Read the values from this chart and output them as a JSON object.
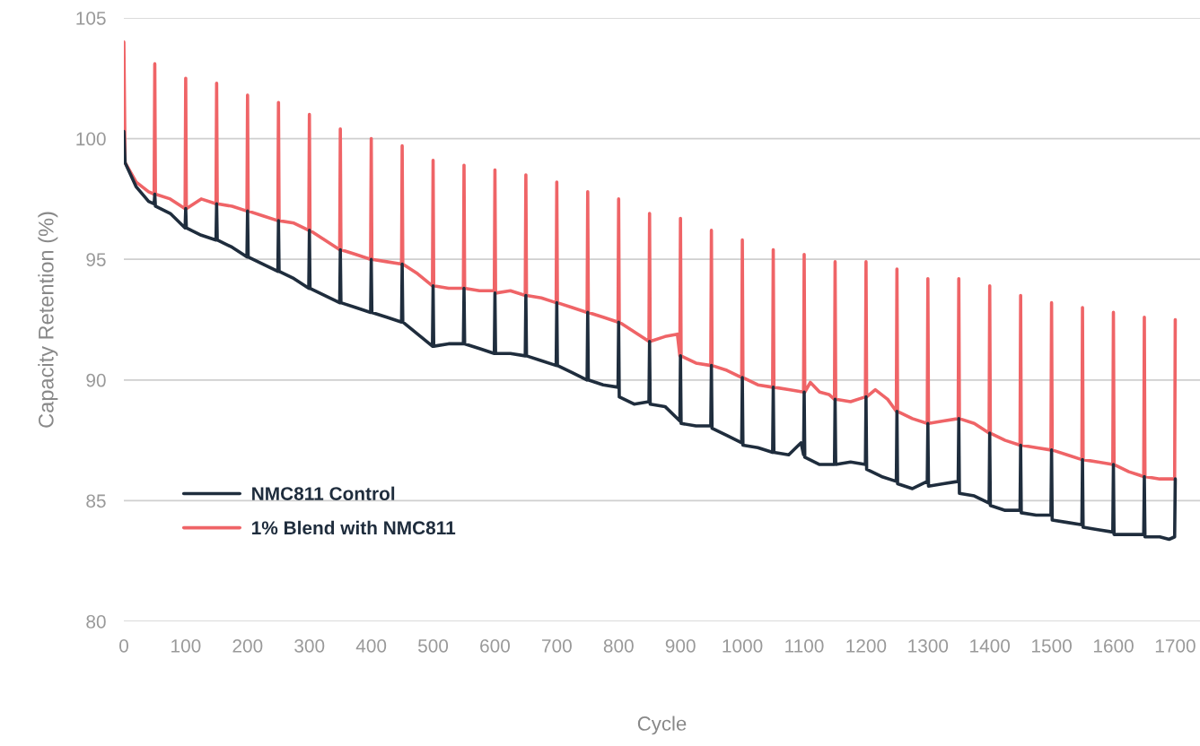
{
  "chart_data": {
    "type": "line",
    "xlabel": "Cycle",
    "ylabel": "Capacity Retention (%)",
    "xlim": [
      0,
      1740
    ],
    "xticks": [
      0,
      100,
      200,
      300,
      400,
      500,
      600,
      700,
      800,
      900,
      1000,
      1100,
      1200,
      1300,
      1400,
      1500,
      1600,
      1700
    ],
    "ylim": [
      80,
      105
    ],
    "yticks": [
      80,
      85,
      90,
      95,
      100,
      105
    ],
    "grid": "y",
    "legend": "bottom left",
    "marker": "none",
    "line_style": "solid",
    "series": [
      {
        "name": "NMC811 Control",
        "color": "#1f2d3d",
        "x": [
          0,
          2,
          20,
          40,
          49,
          50,
          51,
          75,
          99,
          100,
          101,
          125,
          149,
          150,
          151,
          175,
          199,
          200,
          201,
          225,
          249,
          250,
          251,
          275,
          299,
          300,
          301,
          325,
          349,
          350,
          351,
          375,
          399,
          400,
          401,
          425,
          449,
          450,
          451,
          475,
          499,
          500,
          501,
          525,
          549,
          550,
          551,
          575,
          599,
          600,
          601,
          625,
          649,
          650,
          651,
          675,
          699,
          700,
          701,
          725,
          749,
          750,
          751,
          775,
          799,
          800,
          801,
          825,
          849,
          850,
          851,
          875,
          899,
          900,
          901,
          925,
          949,
          950,
          951,
          975,
          999,
          1000,
          1001,
          1025,
          1049,
          1050,
          1051,
          1075,
          1095,
          1099,
          1100,
          1101,
          1125,
          1149,
          1150,
          1151,
          1175,
          1199,
          1200,
          1201,
          1225,
          1249,
          1250,
          1251,
          1275,
          1299,
          1300,
          1301,
          1325,
          1349,
          1350,
          1351,
          1375,
          1399,
          1400,
          1401,
          1425,
          1449,
          1450,
          1451,
          1475,
          1499,
          1500,
          1501,
          1525,
          1549,
          1550,
          1551,
          1575,
          1599,
          1600,
          1601,
          1625,
          1649,
          1650,
          1651,
          1675,
          1690,
          1699,
          1700
        ],
        "values": [
          100.3,
          99.0,
          98.0,
          97.4,
          97.3,
          97.7,
          97.2,
          96.9,
          96.3,
          97.1,
          96.3,
          96.0,
          95.8,
          97.3,
          95.8,
          95.5,
          95.1,
          97.0,
          95.1,
          94.8,
          94.5,
          96.6,
          94.5,
          94.2,
          93.8,
          96.2,
          93.8,
          93.5,
          93.2,
          95.4,
          93.2,
          93.0,
          92.8,
          95.0,
          92.8,
          92.6,
          92.4,
          94.8,
          92.4,
          91.9,
          91.4,
          93.9,
          91.4,
          91.5,
          91.5,
          93.8,
          91.5,
          91.3,
          91.1,
          93.6,
          91.1,
          91.1,
          91.0,
          93.5,
          91.0,
          90.8,
          90.6,
          93.2,
          90.6,
          90.3,
          90.0,
          92.8,
          90.0,
          89.8,
          89.7,
          92.4,
          89.3,
          89.0,
          89.1,
          91.6,
          89.0,
          88.9,
          88.3,
          91.0,
          88.2,
          88.1,
          88.1,
          90.6,
          88.0,
          87.7,
          87.4,
          90.1,
          87.3,
          87.2,
          87.0,
          89.7,
          87.0,
          86.9,
          87.4,
          86.9,
          89.5,
          86.8,
          86.5,
          86.5,
          89.2,
          86.5,
          86.6,
          86.5,
          89.3,
          86.3,
          86.0,
          85.8,
          88.7,
          85.7,
          85.5,
          85.8,
          88.2,
          85.6,
          85.7,
          85.8,
          88.4,
          85.3,
          85.2,
          84.9,
          87.8,
          84.8,
          84.6,
          84.6,
          87.3,
          84.5,
          84.4,
          84.4,
          87.1,
          84.2,
          84.1,
          84.0,
          86.7,
          83.9,
          83.8,
          83.7,
          86.5,
          83.6,
          83.6,
          83.6,
          86.0,
          83.5,
          83.5,
          83.4,
          83.5,
          85.9
        ]
      },
      {
        "name": "1% Blend with NMC811",
        "color": "#ef6467",
        "x": [
          0,
          2,
          20,
          40,
          49,
          50,
          51,
          75,
          99,
          100,
          101,
          125,
          149,
          150,
          151,
          175,
          199,
          200,
          201,
          225,
          249,
          250,
          251,
          275,
          299,
          300,
          301,
          325,
          349,
          350,
          351,
          375,
          399,
          400,
          401,
          425,
          449,
          450,
          451,
          475,
          499,
          500,
          501,
          525,
          549,
          550,
          551,
          575,
          599,
          600,
          601,
          625,
          649,
          650,
          651,
          675,
          699,
          700,
          701,
          725,
          749,
          750,
          751,
          775,
          799,
          800,
          801,
          825,
          849,
          850,
          851,
          875,
          895,
          899,
          900,
          901,
          925,
          949,
          950,
          951,
          975,
          999,
          1000,
          1001,
          1025,
          1049,
          1050,
          1051,
          1075,
          1099,
          1100,
          1101,
          1110,
          1125,
          1140,
          1149,
          1150,
          1151,
          1175,
          1199,
          1200,
          1201,
          1215,
          1235,
          1249,
          1250,
          1251,
          1275,
          1299,
          1300,
          1301,
          1325,
          1349,
          1350,
          1351,
          1375,
          1399,
          1400,
          1401,
          1425,
          1449,
          1450,
          1451,
          1475,
          1499,
          1500,
          1501,
          1525,
          1549,
          1550,
          1551,
          1575,
          1599,
          1600,
          1601,
          1625,
          1649,
          1650,
          1651,
          1675,
          1699,
          1700
        ],
        "values": [
          104.0,
          99.0,
          98.2,
          97.8,
          97.7,
          103.1,
          97.7,
          97.5,
          97.1,
          102.5,
          97.1,
          97.5,
          97.3,
          102.3,
          97.3,
          97.2,
          97.0,
          101.8,
          97.0,
          96.8,
          96.6,
          101.5,
          96.6,
          96.5,
          96.2,
          101.0,
          96.2,
          95.8,
          95.4,
          100.4,
          95.4,
          95.2,
          95.0,
          100.0,
          95.0,
          94.9,
          94.8,
          99.7,
          94.8,
          94.4,
          93.9,
          99.1,
          93.9,
          93.8,
          93.8,
          98.9,
          93.8,
          93.7,
          93.7,
          98.7,
          93.6,
          93.7,
          93.5,
          98.5,
          93.5,
          93.4,
          93.2,
          98.2,
          93.2,
          93.0,
          92.8,
          97.8,
          92.8,
          92.6,
          92.4,
          97.5,
          92.4,
          92.0,
          91.6,
          96.9,
          91.6,
          91.8,
          91.9,
          91.0,
          96.7,
          91.0,
          90.7,
          90.6,
          96.2,
          90.6,
          90.4,
          90.1,
          95.8,
          90.1,
          89.8,
          89.7,
          95.4,
          89.7,
          89.6,
          89.5,
          95.2,
          89.5,
          89.9,
          89.5,
          89.4,
          89.2,
          94.9,
          89.2,
          89.1,
          89.3,
          94.9,
          89.3,
          89.6,
          89.2,
          88.7,
          94.6,
          88.7,
          88.4,
          88.2,
          94.2,
          88.2,
          88.3,
          88.4,
          94.2,
          88.4,
          88.2,
          87.8,
          93.9,
          87.8,
          87.5,
          87.3,
          93.5,
          87.3,
          87.2,
          87.1,
          93.2,
          87.1,
          86.9,
          86.7,
          93.0,
          86.7,
          86.6,
          86.5,
          92.8,
          86.5,
          86.2,
          86.0,
          92.6,
          86.0,
          85.9,
          85.9,
          92.5
        ]
      }
    ]
  }
}
